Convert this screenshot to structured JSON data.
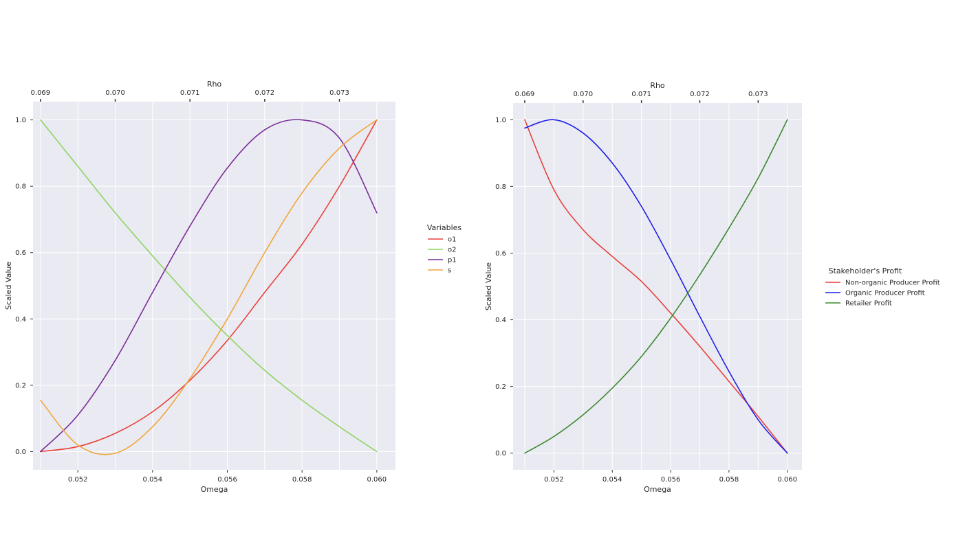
{
  "chart_data": [
    {
      "type": "line",
      "xlabel": "Omega",
      "ylabel": "Scaled Value",
      "top_xlabel": "Rho",
      "xlim": [
        0.0508,
        0.0605
      ],
      "ylim": [
        -0.055,
        1.055
      ],
      "x_ticks": [
        "0.052",
        "0.054",
        "0.056",
        "0.058",
        "0.060"
      ],
      "x_tick_values": [
        0.052,
        0.054,
        0.056,
        0.058,
        0.06
      ],
      "y_ticks": [
        "0.0",
        "0.2",
        "0.4",
        "0.6",
        "0.8",
        "1.0"
      ],
      "y_tick_values": [
        0.0,
        0.2,
        0.4,
        0.6,
        0.8,
        1.0
      ],
      "top_ticks": [
        "0.069",
        "0.070",
        "0.071",
        "0.072",
        "0.073"
      ],
      "top_tick_omega": [
        0.051,
        0.053,
        0.055,
        0.057,
        0.059
      ],
      "grid": true,
      "legend_title": "Variables",
      "legend_position": "right-outside",
      "x": [
        0.051,
        0.052,
        0.053,
        0.054,
        0.055,
        0.056,
        0.057,
        0.058,
        0.059,
        0.06
      ],
      "series": [
        {
          "name": "o1",
          "color": "#e8413a",
          "values": [
            0.0,
            0.015,
            0.055,
            0.12,
            0.215,
            0.335,
            0.48,
            0.625,
            0.8,
            1.0
          ]
        },
        {
          "name": "o2",
          "color": "#8fd460",
          "values": [
            1.0,
            0.86,
            0.72,
            0.59,
            0.465,
            0.35,
            0.245,
            0.155,
            0.075,
            0.0
          ]
        },
        {
          "name": "p1",
          "color": "#7b2d98",
          "values": [
            0.0,
            0.11,
            0.275,
            0.48,
            0.68,
            0.855,
            0.97,
            1.0,
            0.945,
            0.72
          ]
        },
        {
          "name": "s",
          "color": "#f0a63a",
          "values": [
            0.155,
            0.02,
            -0.005,
            0.075,
            0.22,
            0.4,
            0.6,
            0.78,
            0.915,
            1.0
          ]
        }
      ]
    },
    {
      "type": "line",
      "xlabel": "Omega",
      "ylabel": "Scaled Value",
      "top_xlabel": "Rho",
      "xlim": [
        0.0506,
        0.0605
      ],
      "ylim": [
        -0.05,
        1.05
      ],
      "x_ticks": [
        "0.052",
        "0.054",
        "0.056",
        "0.058",
        "0.060"
      ],
      "x_tick_values": [
        0.052,
        0.054,
        0.056,
        0.058,
        0.06
      ],
      "y_ticks": [
        "0.0",
        "0.2",
        "0.4",
        "0.6",
        "0.8",
        "1.0"
      ],
      "y_tick_values": [
        0.0,
        0.2,
        0.4,
        0.6,
        0.8,
        1.0
      ],
      "top_ticks": [
        "0.069",
        "0.070",
        "0.071",
        "0.072",
        "0.073"
      ],
      "top_tick_omega": [
        0.051,
        0.053,
        0.055,
        0.057,
        0.059
      ],
      "grid": true,
      "legend_title": "Stakeholder's Profit",
      "legend_position": "right-outside",
      "x": [
        0.051,
        0.052,
        0.053,
        0.054,
        0.055,
        0.056,
        0.057,
        0.058,
        0.059,
        0.06
      ],
      "series": [
        {
          "name": "Non-organic Producer Profit",
          "color": "#e8413a",
          "values": [
            1.0,
            0.79,
            0.67,
            0.59,
            0.515,
            0.42,
            0.32,
            0.215,
            0.11,
            0.0
          ]
        },
        {
          "name": "Organic Producer Profit",
          "color": "#1f1fe8",
          "values": [
            0.975,
            1.0,
            0.96,
            0.87,
            0.74,
            0.58,
            0.41,
            0.245,
            0.1,
            0.0
          ]
        },
        {
          "name": "Retailer Profit",
          "color": "#3b8a2e",
          "values": [
            0.0,
            0.05,
            0.115,
            0.195,
            0.29,
            0.405,
            0.535,
            0.675,
            0.825,
            1.0
          ]
        }
      ]
    }
  ]
}
